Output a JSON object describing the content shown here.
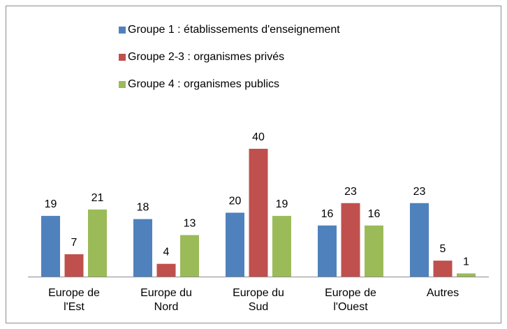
{
  "chart_data": {
    "type": "bar",
    "categories": [
      "Europe de l'Est",
      "Europe du Nord",
      "Europe du Sud",
      "Europe de l'Ouest",
      "Autres"
    ],
    "series": [
      {
        "name": "Groupe 1 : établissements d'enseignement",
        "color": "#4f81bd",
        "values": [
          19,
          18,
          20,
          16,
          23
        ]
      },
      {
        "name": "Groupe 2-3 : organismes privés",
        "color": "#c0504d",
        "values": [
          7,
          4,
          40,
          23,
          5
        ]
      },
      {
        "name": "Groupe 4 : organismes publics",
        "color": "#9bbb59",
        "values": [
          21,
          13,
          19,
          16,
          1
        ]
      }
    ],
    "legend": "top"
  }
}
